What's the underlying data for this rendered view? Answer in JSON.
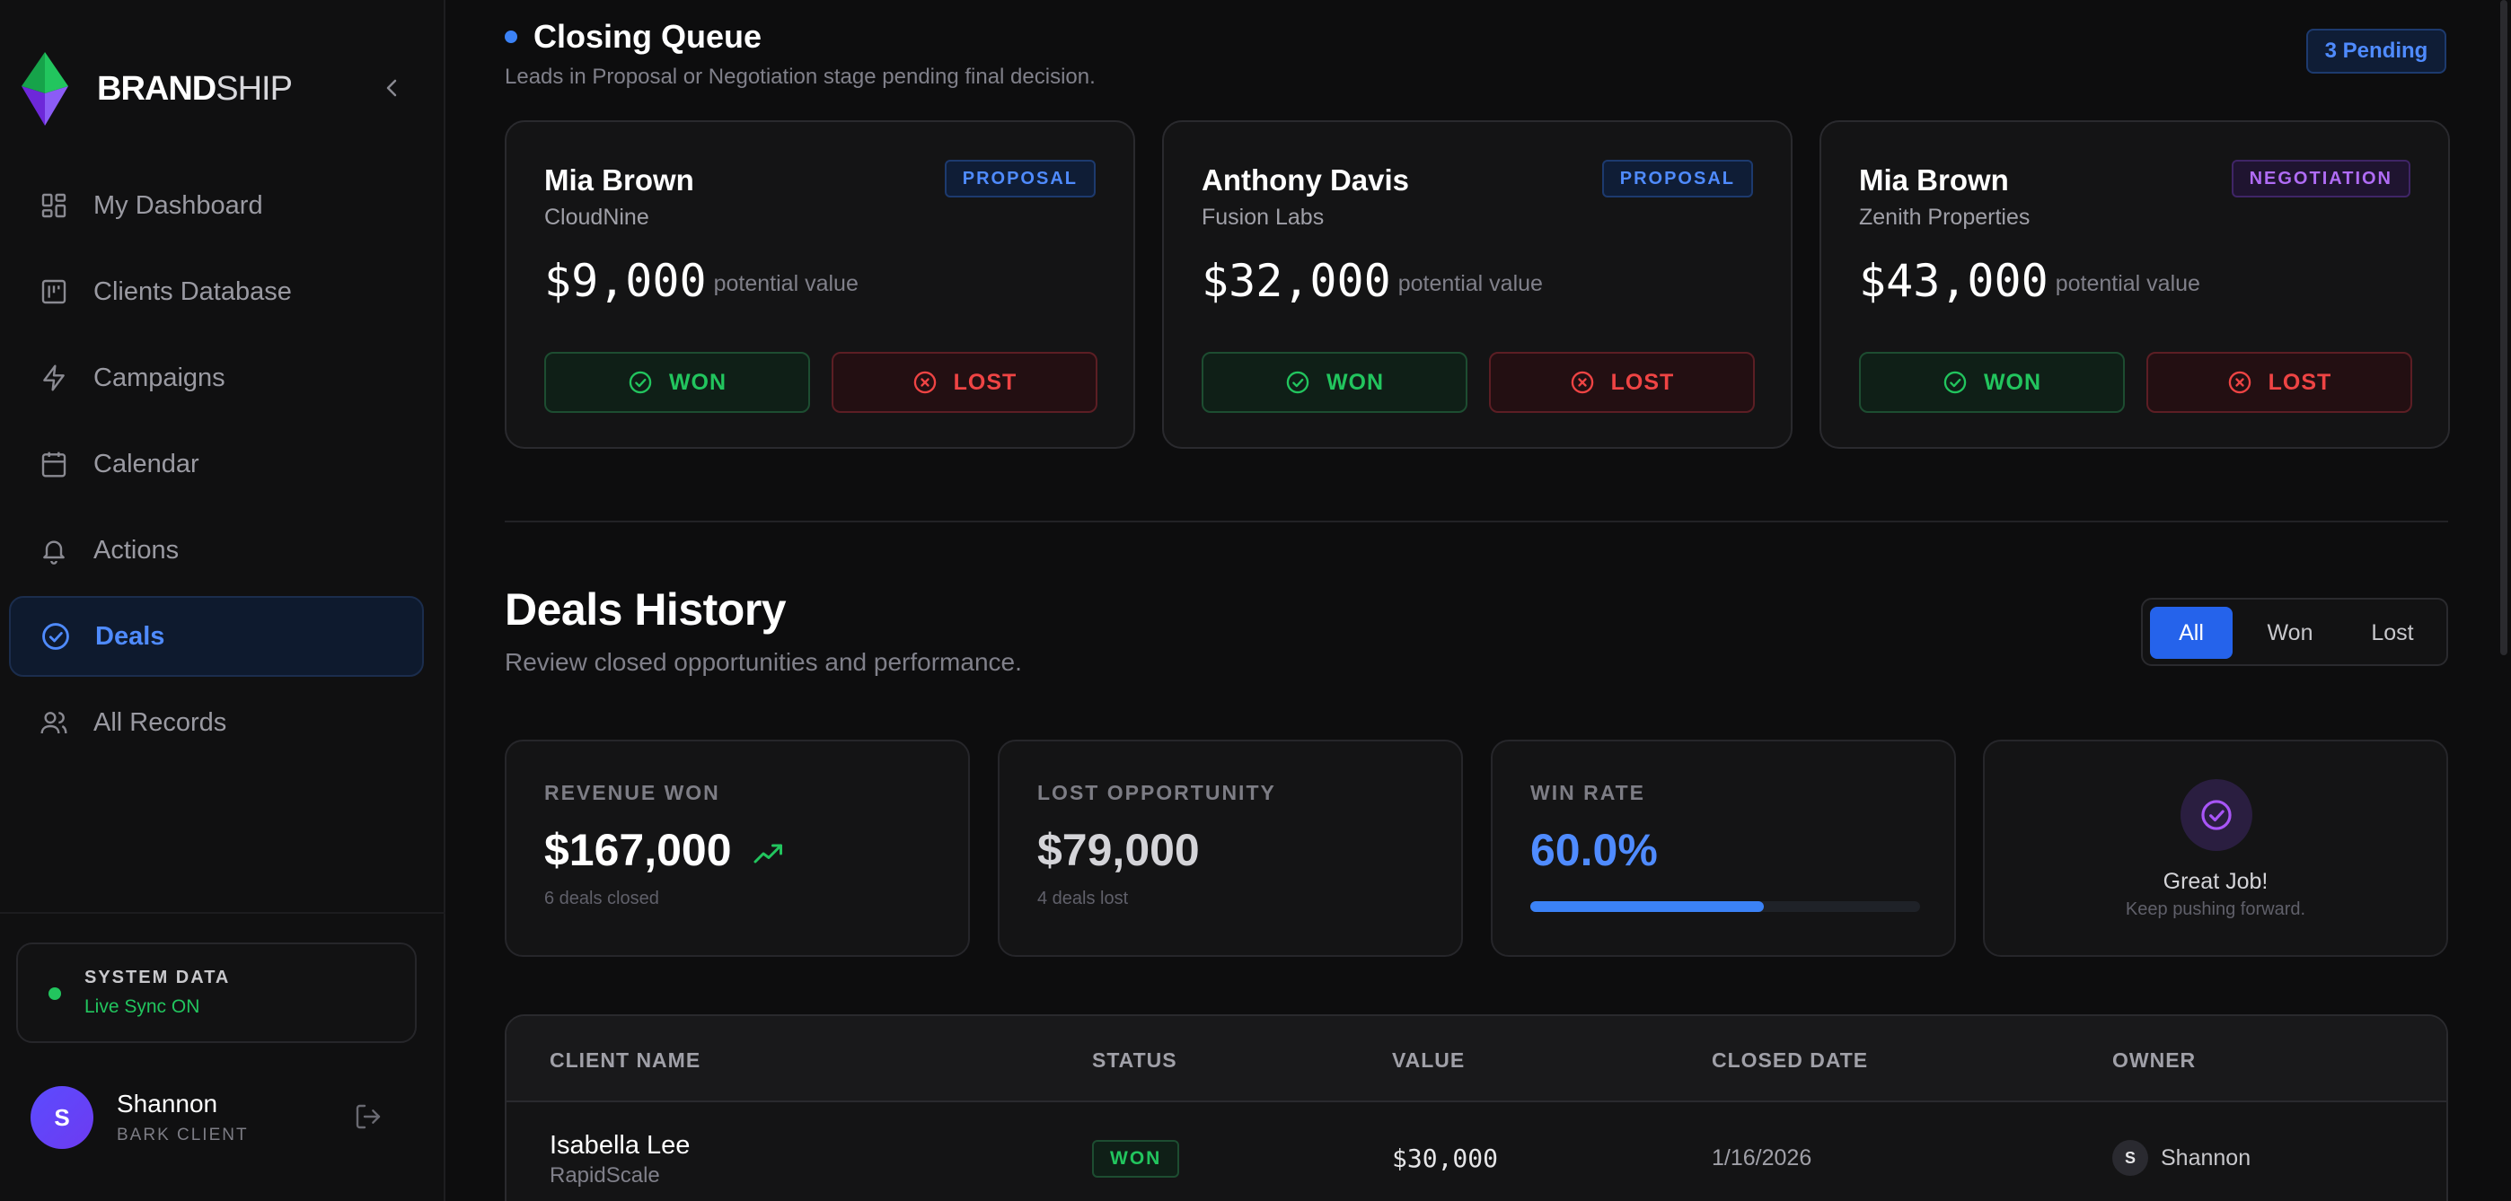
{
  "brand": {
    "name_bold": "BRAND",
    "name_light": "SHIP"
  },
  "sidebar": {
    "items": [
      {
        "label": "My Dashboard",
        "icon": "dashboard-icon"
      },
      {
        "label": "Clients Database",
        "icon": "database-icon"
      },
      {
        "label": "Campaigns",
        "icon": "lightning-icon"
      },
      {
        "label": "Calendar",
        "icon": "calendar-icon"
      },
      {
        "label": "Actions",
        "icon": "bell-icon"
      },
      {
        "label": "Deals",
        "icon": "check-circle-icon",
        "active": true
      },
      {
        "label": "All Records",
        "icon": "users-icon"
      }
    ],
    "system": {
      "title": "SYSTEM DATA",
      "status": "Live Sync ON"
    },
    "user": {
      "initial": "S",
      "name": "Shannon",
      "role": "BARK CLIENT"
    }
  },
  "closing_queue": {
    "title": "Closing Queue",
    "subtitle": "Leads in Proposal or Negotiation stage pending final decision.",
    "pending_badge": "3 Pending",
    "cards": [
      {
        "name": "Mia Brown",
        "company": "CloudNine",
        "stage": "PROPOSAL",
        "value": "$9,000",
        "value_note": "potential value",
        "won_label": "WON",
        "lost_label": "LOST"
      },
      {
        "name": "Anthony Davis",
        "company": "Fusion Labs",
        "stage": "PROPOSAL",
        "value": "$32,000",
        "value_note": "potential value",
        "won_label": "WON",
        "lost_label": "LOST"
      },
      {
        "name": "Mia Brown",
        "company": "Zenith Properties",
        "stage": "NEGOTIATION",
        "value": "$43,000",
        "value_note": "potential value",
        "won_label": "WON",
        "lost_label": "LOST"
      }
    ]
  },
  "deals_history": {
    "title": "Deals History",
    "subtitle": "Review closed opportunities and performance.",
    "filters": [
      "All",
      "Won",
      "Lost"
    ],
    "active_filter": "All",
    "stats": {
      "revenue": {
        "label": "REVENUE WON",
        "value": "$167,000",
        "note": "6 deals closed"
      },
      "lost": {
        "label": "LOST OPPORTUNITY",
        "value": "$79,000",
        "note": "4 deals lost"
      },
      "win_rate": {
        "label": "WIN RATE",
        "value": "60.0%",
        "fraction": 0.6
      },
      "great_job": {
        "title": "Great Job!",
        "subtitle": "Keep pushing forward."
      }
    },
    "table": {
      "columns": [
        "CLIENT NAME",
        "STATUS",
        "VALUE",
        "CLOSED DATE",
        "OWNER"
      ],
      "rows": [
        {
          "name": "Isabella Lee",
          "company": "RapidScale",
          "status": "WON",
          "value": "$30,000",
          "closed_date": "1/16/2026",
          "owner_initial": "S",
          "owner": "Shannon"
        }
      ]
    }
  },
  "colors": {
    "accent": "#2563eb",
    "won": "#22c55e",
    "lost": "#ef4444",
    "negotiation": "#b06cf5"
  }
}
